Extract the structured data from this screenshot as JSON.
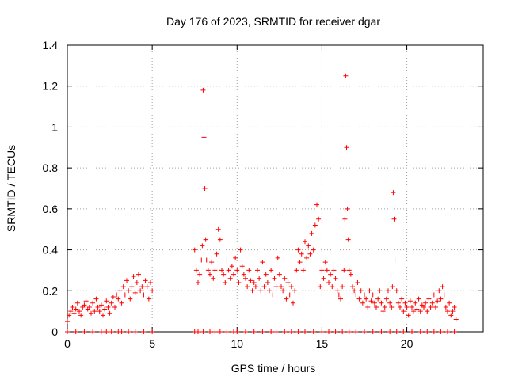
{
  "chart_data": {
    "type": "scatter",
    "title": "Day 176 of 2023, SRMTID for receiver dgar",
    "xlabel": "GPS time / hours",
    "ylabel": "SRMTID / TECUs",
    "xlim": [
      0,
      24.5
    ],
    "ylim": [
      0,
      1.4
    ],
    "grid": true,
    "marker": "+",
    "series_color": "#ff0000",
    "x_ticks": [
      0,
      5,
      10,
      15,
      20
    ],
    "y_ticks": [
      0,
      0.2,
      0.4,
      0.6,
      0.8,
      1,
      1.2,
      1.4
    ],
    "x_tick_labels": [
      "0",
      "5",
      "10",
      "15",
      "20"
    ],
    "y_tick_labels": [
      "0",
      "0.2",
      "0.4",
      "0.6",
      "0.8",
      "1",
      "1.2",
      "1.4"
    ],
    "series": [
      {
        "name": "SRMTID",
        "x": [
          0.0,
          0.1,
          0.2,
          0.3,
          0.4,
          0.5,
          0.6,
          0.7,
          0.8,
          0.9,
          1.0,
          1.1,
          1.2,
          1.3,
          1.4,
          1.5,
          1.6,
          1.7,
          1.8,
          1.9,
          2.0,
          2.1,
          2.2,
          2.3,
          2.4,
          2.5,
          2.6,
          2.7,
          2.8,
          2.9,
          3.0,
          3.1,
          3.2,
          3.3,
          3.4,
          3.5,
          3.6,
          3.7,
          3.8,
          3.9,
          4.0,
          4.1,
          4.2,
          4.3,
          4.4,
          4.5,
          4.6,
          4.7,
          4.8,
          4.9,
          5.0,
          7.5,
          7.6,
          7.7,
          7.8,
          7.9,
          7.95,
          8.0,
          8.05,
          8.1,
          8.15,
          8.2,
          8.3,
          8.4,
          8.5,
          8.6,
          8.7,
          8.8,
          8.9,
          9.0,
          9.1,
          9.2,
          9.3,
          9.4,
          9.5,
          9.6,
          9.7,
          9.8,
          9.9,
          10.0,
          10.1,
          10.2,
          10.3,
          10.4,
          10.5,
          10.6,
          10.7,
          10.8,
          10.9,
          11.0,
          11.1,
          11.2,
          11.3,
          11.4,
          11.5,
          11.6,
          11.7,
          11.8,
          11.9,
          12.0,
          12.1,
          12.2,
          12.3,
          12.4,
          12.5,
          12.6,
          12.7,
          12.8,
          12.9,
          13.0,
          13.1,
          13.2,
          13.3,
          13.4,
          13.5,
          13.6,
          13.7,
          13.8,
          13.9,
          14.0,
          14.1,
          14.2,
          14.3,
          14.4,
          14.5,
          14.6,
          14.7,
          14.8,
          14.9,
          15.0,
          15.1,
          15.2,
          15.3,
          15.4,
          15.5,
          15.6,
          15.7,
          15.8,
          15.9,
          16.0,
          16.1,
          16.2,
          16.3,
          16.35,
          16.4,
          16.45,
          16.5,
          16.55,
          16.6,
          16.7,
          16.8,
          16.9,
          17.0,
          17.1,
          17.2,
          17.3,
          17.4,
          17.5,
          17.6,
          17.7,
          17.8,
          17.9,
          18.0,
          18.1,
          18.2,
          18.3,
          18.4,
          18.5,
          18.6,
          18.7,
          18.8,
          18.9,
          19.0,
          19.1,
          19.15,
          19.2,
          19.25,
          19.3,
          19.4,
          19.5,
          19.6,
          19.7,
          19.8,
          19.9,
          20.0,
          20.1,
          20.2,
          20.3,
          20.4,
          20.5,
          20.6,
          20.7,
          20.8,
          20.9,
          21.0,
          21.1,
          21.2,
          21.3,
          21.4,
          21.5,
          21.6,
          21.7,
          21.8,
          21.9,
          22.0,
          22.1,
          22.2,
          22.3,
          22.4,
          22.5,
          22.6,
          22.7,
          22.8,
          22.9
        ],
        "y": [
          0.05,
          0.08,
          0.1,
          0.12,
          0.09,
          0.11,
          0.14,
          0.1,
          0.08,
          0.12,
          0.13,
          0.15,
          0.11,
          0.12,
          0.09,
          0.14,
          0.1,
          0.16,
          0.12,
          0.1,
          0.13,
          0.08,
          0.11,
          0.15,
          0.12,
          0.09,
          0.14,
          0.17,
          0.12,
          0.18,
          0.16,
          0.2,
          0.14,
          0.22,
          0.18,
          0.25,
          0.2,
          0.16,
          0.22,
          0.27,
          0.19,
          0.24,
          0.28,
          0.2,
          0.22,
          0.18,
          0.25,
          0.22,
          0.16,
          0.24,
          0.2,
          0.4,
          0.3,
          0.24,
          0.28,
          0.35,
          0.42,
          1.18,
          0.95,
          0.7,
          0.45,
          0.35,
          0.3,
          0.28,
          0.34,
          0.26,
          0.3,
          0.38,
          0.5,
          0.45,
          0.3,
          0.28,
          0.24,
          0.35,
          0.3,
          0.26,
          0.32,
          0.28,
          0.36,
          0.3,
          0.24,
          0.4,
          0.32,
          0.28,
          0.26,
          0.22,
          0.3,
          0.25,
          0.2,
          0.24,
          0.22,
          0.3,
          0.26,
          0.2,
          0.34,
          0.22,
          0.28,
          0.24,
          0.2,
          0.3,
          0.18,
          0.26,
          0.22,
          0.36,
          0.28,
          0.22,
          0.2,
          0.26,
          0.16,
          0.24,
          0.18,
          0.22,
          0.14,
          0.2,
          0.3,
          0.4,
          0.34,
          0.38,
          0.3,
          0.44,
          0.36,
          0.42,
          0.38,
          0.48,
          0.4,
          0.52,
          0.62,
          0.55,
          0.22,
          0.3,
          0.26,
          0.34,
          0.3,
          0.24,
          0.28,
          0.22,
          0.3,
          0.26,
          0.2,
          0.18,
          0.16,
          0.22,
          0.3,
          0.55,
          1.25,
          0.9,
          0.6,
          0.45,
          0.3,
          0.28,
          0.22,
          0.2,
          0.18,
          0.24,
          0.16,
          0.2,
          0.14,
          0.18,
          0.16,
          0.12,
          0.2,
          0.15,
          0.18,
          0.14,
          0.12,
          0.16,
          0.2,
          0.14,
          0.1,
          0.12,
          0.16,
          0.2,
          0.14,
          0.12,
          0.22,
          0.68,
          0.55,
          0.35,
          0.2,
          0.14,
          0.12,
          0.16,
          0.1,
          0.14,
          0.12,
          0.08,
          0.15,
          0.12,
          0.1,
          0.14,
          0.11,
          0.16,
          0.1,
          0.13,
          0.12,
          0.14,
          0.1,
          0.16,
          0.12,
          0.14,
          0.18,
          0.12,
          0.15,
          0.2,
          0.16,
          0.22,
          0.18,
          0.12,
          0.1,
          0.14,
          0.08,
          0.1,
          0.12,
          0.06
        ]
      },
      {
        "name": "zero-level markers",
        "x": [
          0.0,
          0.5,
          1.0,
          1.5,
          2.0,
          2.3,
          2.6,
          3.0,
          3.2,
          3.6,
          4.0,
          4.5,
          5.0,
          7.5,
          7.7,
          8.0,
          8.4,
          8.7,
          9.0,
          9.4,
          9.8,
          10.0,
          10.5,
          11.0,
          11.5,
          12.0,
          12.3,
          12.8,
          13.2,
          13.6,
          14.0,
          14.5,
          15.0,
          15.4,
          15.8,
          16.2,
          16.6,
          17.0,
          17.5,
          18.0,
          18.5,
          19.0,
          19.4,
          19.8,
          20.3,
          20.8,
          21.2,
          21.6,
          22.0,
          22.4,
          22.8
        ]
      }
    ]
  }
}
